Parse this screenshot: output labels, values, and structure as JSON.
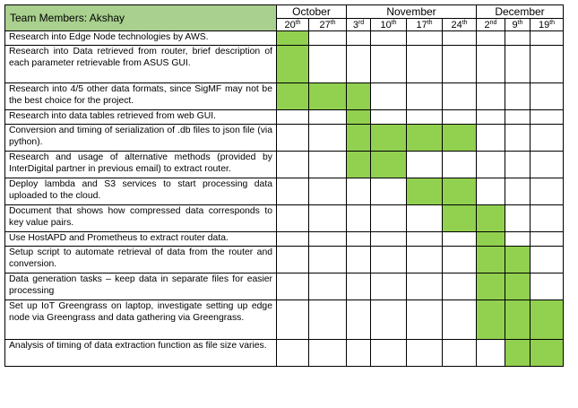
{
  "header": {
    "team_label": "Team Members: Akshay",
    "months": [
      {
        "label": "October",
        "span": 2
      },
      {
        "label": "November",
        "span": 4
      },
      {
        "label": "December",
        "span": 3
      }
    ],
    "weeks": [
      {
        "day": "20",
        "suffix": "th"
      },
      {
        "day": "27",
        "suffix": "th"
      },
      {
        "day": "3",
        "suffix": "rd"
      },
      {
        "day": "10",
        "suffix": "th"
      },
      {
        "day": "17",
        "suffix": "th"
      },
      {
        "day": "24",
        "suffix": "th"
      },
      {
        "day": "2",
        "suffix": "nd"
      },
      {
        "day": "9",
        "suffix": "th"
      },
      {
        "day": "19",
        "suffix": "th"
      }
    ]
  },
  "colors": {
    "header_fill": "#a9d08e",
    "active_cell": "#92d050",
    "border": "#000000"
  },
  "tasks": [
    {
      "text": "Research into Edge Node technologies by AWS.",
      "active": [
        1,
        0,
        0,
        0,
        0,
        0,
        0,
        0,
        0
      ]
    },
    {
      "text": "Research into Data retrieved from router, brief description of each parameter retrievable from ASUS GUI.",
      "active": [
        1,
        0,
        0,
        0,
        0,
        0,
        0,
        0,
        0
      ]
    },
    {
      "text": "Research into 4/5 other data formats, since SigMF may not be the best choice for the project.",
      "active": [
        1,
        1,
        1,
        0,
        0,
        0,
        0,
        0,
        0
      ]
    },
    {
      "text": "Research into data tables retrieved from web GUI.",
      "active": [
        0,
        0,
        1,
        0,
        0,
        0,
        0,
        0,
        0
      ]
    },
    {
      "text": "Conversion and timing of serialization of .db files to json file (via python).",
      "active": [
        0,
        0,
        1,
        1,
        1,
        1,
        0,
        0,
        0
      ]
    },
    {
      "text": "Research and usage of alternative methods (provided by InterDigital partner in previous email) to extract router.",
      "active": [
        0,
        0,
        1,
        1,
        0,
        0,
        0,
        0,
        0
      ]
    },
    {
      "text": "Deploy lambda and S3 services to start processing data uploaded to the cloud.",
      "active": [
        0,
        0,
        0,
        0,
        1,
        1,
        0,
        0,
        0
      ]
    },
    {
      "text": "Document that shows how compressed data corresponds to key value pairs.",
      "active": [
        0,
        0,
        0,
        0,
        0,
        1,
        1,
        0,
        0
      ]
    },
    {
      "text": "Use HostAPD and Prometheus to extract router data.",
      "active": [
        0,
        0,
        0,
        0,
        0,
        0,
        1,
        0,
        0
      ]
    },
    {
      "text": "Setup script to automate retrieval of data from the router and conversion.",
      "active": [
        0,
        0,
        0,
        0,
        0,
        0,
        1,
        1,
        0
      ]
    },
    {
      "text": "Data generation tasks – keep data in separate files for easier processing",
      "active": [
        0,
        0,
        0,
        0,
        0,
        0,
        1,
        1,
        0
      ]
    },
    {
      "text": "Set up IoT Greengrass on laptop, investigate setting up edge node via Greengrass and data gathering via Greengrass.",
      "active": [
        0,
        0,
        0,
        0,
        0,
        0,
        1,
        1,
        1
      ]
    },
    {
      "text": "Analysis of timing of data extraction function as file size varies.",
      "active": [
        0,
        0,
        0,
        0,
        0,
        0,
        0,
        1,
        1
      ]
    }
  ]
}
